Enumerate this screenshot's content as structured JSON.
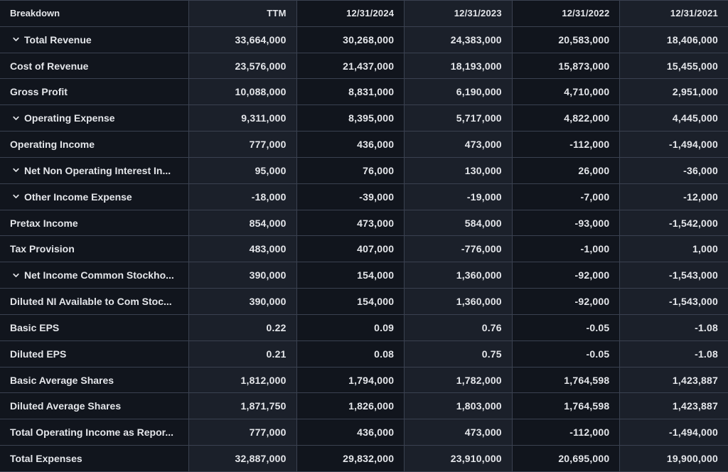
{
  "table": {
    "columns": [
      "Breakdown",
      "TTM",
      "12/31/2024",
      "12/31/2023",
      "12/31/2022",
      "12/31/2021"
    ],
    "rows": [
      {
        "label": "Total Revenue",
        "expandable": true,
        "values": [
          "33,664,000",
          "30,268,000",
          "24,383,000",
          "20,583,000",
          "18,406,000"
        ]
      },
      {
        "label": "Cost of Revenue",
        "expandable": false,
        "values": [
          "23,576,000",
          "21,437,000",
          "18,193,000",
          "15,873,000",
          "15,455,000"
        ]
      },
      {
        "label": "Gross Profit",
        "expandable": false,
        "values": [
          "10,088,000",
          "8,831,000",
          "6,190,000",
          "4,710,000",
          "2,951,000"
        ]
      },
      {
        "label": "Operating Expense",
        "expandable": true,
        "values": [
          "9,311,000",
          "8,395,000",
          "5,717,000",
          "4,822,000",
          "4,445,000"
        ]
      },
      {
        "label": "Operating Income",
        "expandable": false,
        "values": [
          "777,000",
          "436,000",
          "473,000",
          "-112,000",
          "-1,494,000"
        ]
      },
      {
        "label": "Net Non Operating Interest In...",
        "expandable": true,
        "values": [
          "95,000",
          "76,000",
          "130,000",
          "26,000",
          "-36,000"
        ]
      },
      {
        "label": "Other Income Expense",
        "expandable": true,
        "values": [
          "-18,000",
          "-39,000",
          "-19,000",
          "-7,000",
          "-12,000"
        ]
      },
      {
        "label": "Pretax Income",
        "expandable": false,
        "values": [
          "854,000",
          "473,000",
          "584,000",
          "-93,000",
          "-1,542,000"
        ]
      },
      {
        "label": "Tax Provision",
        "expandable": false,
        "values": [
          "483,000",
          "407,000",
          "-776,000",
          "-1,000",
          "1,000"
        ]
      },
      {
        "label": "Net Income Common Stockho...",
        "expandable": true,
        "values": [
          "390,000",
          "154,000",
          "1,360,000",
          "-92,000",
          "-1,543,000"
        ]
      },
      {
        "label": "Diluted NI Available to Com Stoc...",
        "expandable": false,
        "values": [
          "390,000",
          "154,000",
          "1,360,000",
          "-92,000",
          "-1,543,000"
        ]
      },
      {
        "label": "Basic EPS",
        "expandable": false,
        "values": [
          "0.22",
          "0.09",
          "0.76",
          "-0.05",
          "-1.08"
        ]
      },
      {
        "label": "Diluted EPS",
        "expandable": false,
        "values": [
          "0.21",
          "0.08",
          "0.75",
          "-0.05",
          "-1.08"
        ]
      },
      {
        "label": "Basic Average Shares",
        "expandable": false,
        "values": [
          "1,812,000",
          "1,794,000",
          "1,782,000",
          "1,764,598",
          "1,423,887"
        ]
      },
      {
        "label": "Diluted Average Shares",
        "expandable": false,
        "values": [
          "1,871,750",
          "1,826,000",
          "1,803,000",
          "1,764,598",
          "1,423,887"
        ]
      },
      {
        "label": "Total Operating Income as Repor...",
        "expandable": false,
        "values": [
          "777,000",
          "436,000",
          "473,000",
          "-112,000",
          "-1,494,000"
        ]
      },
      {
        "label": "Total Expenses",
        "expandable": false,
        "values": [
          "32,887,000",
          "29,832,000",
          "23,910,000",
          "20,695,000",
          "19,900,000"
        ]
      }
    ]
  },
  "colors": {
    "background_dark": "#11151d",
    "background_light": "#1b202a",
    "border": "#3a4150",
    "text": "#e4e6ea"
  },
  "icons": {
    "expand_row": "chevron-down"
  }
}
